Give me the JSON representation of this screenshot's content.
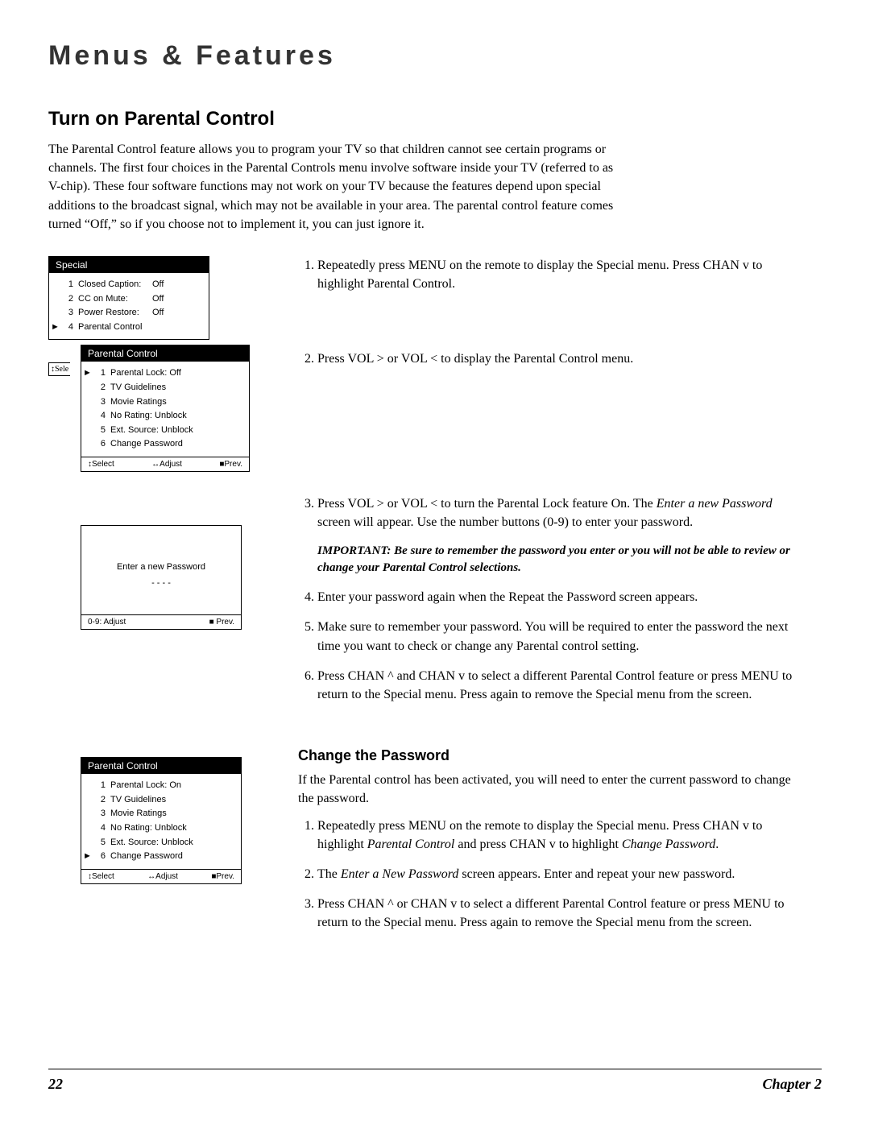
{
  "header": "Menus & Features",
  "section_title": "Turn on Parental Control",
  "intro": "The Parental Control feature allows you to program your TV so that children cannot see certain programs or channels. The first four choices in the Parental Controls menu involve software inside your TV (referred to as V-chip). These four software functions may not work on your TV because the features depend upon special additions to the broadcast signal, which may not be available in your area. The parental control feature comes turned “Off,” so if you choose not to implement it, you can just ignore it.",
  "special_menu": {
    "title": "Special",
    "items": [
      {
        "n": "1",
        "label": "Closed Caption:",
        "value": "Off"
      },
      {
        "n": "2",
        "label": "CC on Mute:",
        "value": "Off"
      },
      {
        "n": "3",
        "label": "Power Restore:",
        "value": "Off"
      },
      {
        "n": "4",
        "label": "Parental Control",
        "value": "",
        "selected": true
      }
    ]
  },
  "pc_menu": {
    "title": "Parental Control",
    "side": "↕Sele",
    "items": [
      {
        "n": "1",
        "label": "Parental Lock:  Off",
        "selected": true
      },
      {
        "n": "2",
        "label": "TV Guidelines"
      },
      {
        "n": "3",
        "label": "Movie Ratings"
      },
      {
        "n": "4",
        "label": "No Rating:  Unblock"
      },
      {
        "n": "5",
        "label": "Ext. Source:  Unblock"
      },
      {
        "n": "6",
        "label": "Change Password"
      }
    ],
    "footer": {
      "a": "↕Select",
      "b": "↔Adjust",
      "c": "■Prev."
    }
  },
  "password_box": {
    "line1": "Enter a new Password",
    "line2": "- - - -",
    "footer": {
      "a": "0-9: Adjust",
      "b": "■ Prev."
    }
  },
  "pc_menu2": {
    "title": "Parental Control",
    "items": [
      {
        "n": "1",
        "label": "Parental Lock:  On"
      },
      {
        "n": "2",
        "label": "TV Guidelines"
      },
      {
        "n": "3",
        "label": "Movie Ratings"
      },
      {
        "n": "4",
        "label": "No Rating:  Unblock"
      },
      {
        "n": "5",
        "label": "Ext. Source:  Unblock"
      },
      {
        "n": "6",
        "label": "Change Password",
        "selected": true
      }
    ],
    "footer": {
      "a": "↕Select",
      "b": "↔Adjust",
      "c": "■Prev."
    }
  },
  "steps": {
    "s1": "Repeatedly press MENU on the remote to display the Special menu. Press CHAN v to highlight Parental Control.",
    "s2": "Press VOL > or VOL <  to display the Parental Control menu.",
    "s3a": "Press VOL > or VOL <  to turn the Parental Lock feature On. The ",
    "s3b": "Enter a new Password",
    "s3c": " screen will appear. Use the number buttons (0-9) to enter your password.",
    "important_label": "IMPORTANT:",
    "important_text": " Be sure to remember the password you enter or you will not be able to review or change your Parental Control selections.",
    "s4": "Enter your password again when the Repeat the Password screen appears.",
    "s5": "Make sure to remember your password. You will be required to enter the password the next time you want to check or change any Parental control setting.",
    "s6": "Press CHAN ^ and CHAN v to select a different Parental Control feature or press MENU to return to the Special menu. Press again to remove the Special menu from the screen."
  },
  "change_pw": {
    "title": "Change the Password",
    "intro": "If the Parental control has been activated, you will need to enter the current password to change the password.",
    "s1a": "Repeatedly press MENU on the remote to display the Special menu. Press CHAN v to highlight ",
    "s1b": "Parental Control",
    "s1c": " and press CHAN v to highlight ",
    "s1d": "Change Password",
    "s1e": ".",
    "s2a": "The ",
    "s2b": "Enter a New Password",
    "s2c": " screen appears. Enter and repeat your new password.",
    "s3": "Press CHAN ^ or CHAN v  to select a different Parental Control feature or press MENU to return to the Special menu. Press again to remove the Special menu from the screen."
  },
  "footer": {
    "page": "22",
    "chapter": "Chapter 2"
  }
}
